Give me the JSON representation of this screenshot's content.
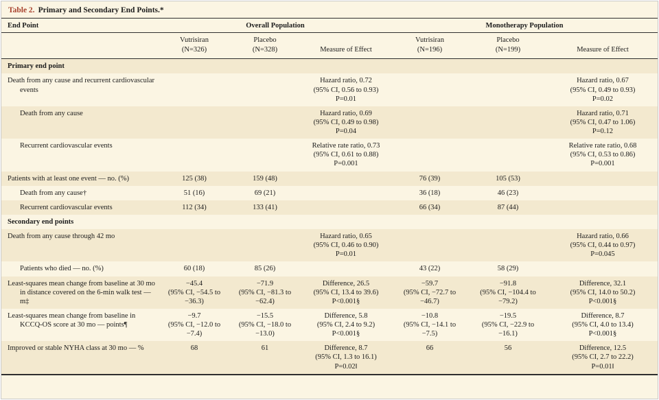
{
  "colors": {
    "accent": "#a8432f",
    "cream": "#fbf5e3",
    "stripe": "#f3e9cf",
    "rule": "#2e2e2e",
    "border": "#c9c9c9"
  },
  "title": {
    "label": "Table 2.",
    "text": "Primary and Secondary End Points.*"
  },
  "header": {
    "endpoint_label": "End Point",
    "group1": "Overall Population",
    "group2": "Monotherapy Population",
    "columns": [
      [
        "Vutrisiran",
        "(N=326)"
      ],
      [
        "Placebo",
        "(N=328)"
      ],
      [
        "Measure of Effect"
      ],
      [
        "Vutrisiran",
        "(N=196)"
      ],
      [
        "Placebo",
        "(N=199)"
      ],
      [
        "Measure of Effect"
      ]
    ]
  },
  "rows": [
    {
      "label": "Primary end point",
      "bold": true,
      "indent": 0,
      "shaded": true,
      "cells": [
        "",
        "",
        "",
        "",
        "",
        ""
      ]
    },
    {
      "label": "Death from any cause and recurrent cardiovascular events",
      "bold": false,
      "indent": 0,
      "shaded": false,
      "cells": [
        "",
        "",
        [
          "Hazard ratio, 0.72",
          "(95% CI, 0.56 to 0.93)",
          "P=0.01"
        ],
        "",
        "",
        [
          "Hazard ratio, 0.67",
          "(95% CI, 0.49 to 0.93)",
          "P=0.02"
        ]
      ]
    },
    {
      "label": "Death from any cause",
      "bold": false,
      "indent": 1,
      "shaded": true,
      "cells": [
        "",
        "",
        [
          "Hazard ratio, 0.69",
          "(95% CI, 0.49 to 0.98)",
          "P=0.04"
        ],
        "",
        "",
        [
          "Hazard ratio, 0.71",
          "(95% CI, 0.47 to 1.06)",
          "P=0.12"
        ]
      ]
    },
    {
      "label": "Recurrent cardiovascular events",
      "bold": false,
      "indent": 1,
      "shaded": false,
      "cells": [
        "",
        "",
        [
          "Relative rate ratio, 0.73",
          "(95% CI, 0.61 to 0.88)",
          "P=0.001"
        ],
        "",
        "",
        [
          "Relative rate ratio, 0.68",
          "(95% CI, 0.53 to 0.86)",
          "P=0.001"
        ]
      ]
    },
    {
      "label": "Patients with at least one event — no. (%)",
      "bold": false,
      "indent": 0,
      "shaded": true,
      "cells": [
        "125 (38)",
        "159 (48)",
        "",
        "76 (39)",
        "105 (53)",
        ""
      ]
    },
    {
      "label": "Death from any cause†",
      "bold": false,
      "indent": 1,
      "shaded": false,
      "cells": [
        "51 (16)",
        "69 (21)",
        "",
        "36 (18)",
        "46 (23)",
        ""
      ]
    },
    {
      "label": "Recurrent cardiovascular events",
      "bold": false,
      "indent": 1,
      "shaded": true,
      "cells": [
        "112 (34)",
        "133 (41)",
        "",
        "66 (34)",
        "87 (44)",
        ""
      ]
    },
    {
      "label": "Secondary end points",
      "bold": true,
      "indent": 0,
      "shaded": false,
      "cells": [
        "",
        "",
        "",
        "",
        "",
        ""
      ]
    },
    {
      "label": "Death from any cause through 42 mo",
      "bold": false,
      "indent": 0,
      "shaded": true,
      "cells": [
        "",
        "",
        [
          "Hazard ratio, 0.65",
          "(95% CI, 0.46 to 0.90)",
          "P=0.01"
        ],
        "",
        "",
        [
          "Hazard ratio, 0.66",
          "(95% CI, 0.44 to 0.97)",
          "P=0.045"
        ]
      ]
    },
    {
      "label": "Patients who died — no. (%)",
      "bold": false,
      "indent": 1,
      "shaded": false,
      "cells": [
        "60 (18)",
        "85 (26)",
        "",
        "43 (22)",
        "58 (29)",
        ""
      ]
    },
    {
      "label": "Least-squares mean change from baseline at 30 mo in distance covered on the 6-min walk test — m‡",
      "bold": false,
      "indent": 0,
      "shaded": true,
      "cells": [
        [
          "−45.4",
          "(95% CI, −54.5 to",
          "−36.3)"
        ],
        [
          "−71.9",
          "(95% CI, −81.3 to",
          "−62.4)"
        ],
        [
          "Difference, 26.5",
          "(95% CI, 13.4 to 39.6)",
          "P<0.001§"
        ],
        [
          "−59.7",
          "(95% CI, −72.7 to",
          "−46.7)"
        ],
        [
          "−91.8",
          "(95% CI, −104.4 to",
          "−79.2)"
        ],
        [
          "Difference, 32.1",
          "(95% CI, 14.0 to 50.2)",
          "P<0.001§"
        ]
      ]
    },
    {
      "label": "Least-squares mean change from baseline in KCCQ-OS score at 30 mo — points¶",
      "bold": false,
      "indent": 0,
      "shaded": false,
      "cells": [
        [
          "−9.7",
          "(95% CI, −12.0 to",
          "−7.4)"
        ],
        [
          "−15.5",
          "(95% CI, −18.0 to",
          "−13.0)"
        ],
        [
          "Difference, 5.8",
          "(95% CI, 2.4 to 9.2)",
          "P<0.001§"
        ],
        [
          "−10.8",
          "(95% CI, −14.1 to",
          "−7.5)"
        ],
        [
          "−19.5",
          "(95% CI, −22.9 to",
          "−16.1)"
        ],
        [
          "Difference, 8.7",
          "(95% CI, 4.0 to 13.4)",
          "P<0.001§"
        ]
      ]
    },
    {
      "label": "Improved or stable NYHA class at 30 mo — %",
      "bold": false,
      "indent": 0,
      "shaded": true,
      "cells": [
        "68",
        "61",
        [
          "Difference, 8.7",
          "(95% CI, 1.3 to 16.1)",
          "P=0.02‖"
        ],
        "66",
        "56",
        [
          "Difference, 12.5",
          "(95% CI, 2.7 to 22.2)",
          "P=0.01‖"
        ]
      ]
    }
  ]
}
